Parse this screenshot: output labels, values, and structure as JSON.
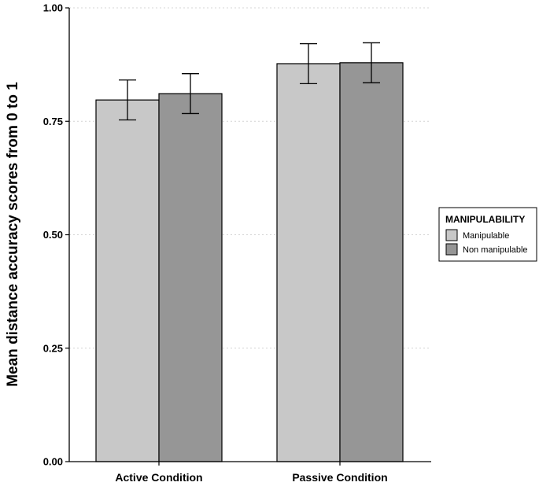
{
  "chart_data": {
    "type": "bar",
    "title": "",
    "xlabel": "",
    "ylabel": "Mean distance accuracy scores from 0 to 1",
    "ylim": [
      0,
      1
    ],
    "yticks": [
      0,
      0.25,
      0.5,
      0.75,
      1
    ],
    "ytick_labels": [
      "0.00",
      "0.25",
      "0.50",
      "0.75",
      "1.00"
    ],
    "grid": "horizontal dotted",
    "categories": [
      "Active Condition",
      "Passive Condition"
    ],
    "legend": {
      "title": "MANIPULABILITY",
      "placement": "right"
    },
    "series": [
      {
        "name": "Manipulable",
        "color": "#c8c8c8",
        "values": [
          0.797,
          0.877
        ],
        "errors": [
          0.044,
          0.044
        ]
      },
      {
        "name": "Non manipulable",
        "color": "#969696",
        "values": [
          0.811,
          0.879
        ],
        "errors": [
          0.044,
          0.044
        ]
      }
    ]
  }
}
